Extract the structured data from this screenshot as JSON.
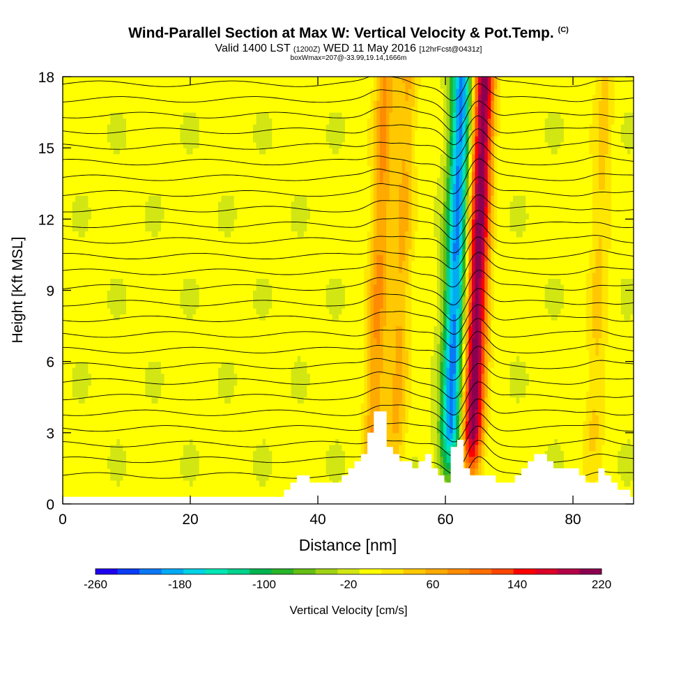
{
  "chart_data": {
    "type": "heatmap",
    "title": "Wind-Parallel Section at Max W: Vertical Velocity & Pot.Temp.",
    "title_mark": "(C)",
    "subtitle_main": "Valid 1400 LST",
    "subtitle_utc": "(1200Z)",
    "subtitle_date": "WED 11 May 2016",
    "subtitle_fcst": "[12hrFcst@0431z]",
    "subtitle2": "boxWmax=207@-33.99,19.14,1666m",
    "xlabel": "Distance [nm]",
    "ylabel": "Height [Kft MSL]",
    "xlim": [
      0,
      89.5
    ],
    "ylim": [
      0,
      18
    ],
    "x_ticks": [
      "0",
      "20",
      "40",
      "60",
      "80"
    ],
    "y_ticks": [
      "0",
      "3",
      "6",
      "9",
      "12",
      "15",
      "18"
    ],
    "colorbar_label": "Vertical Velocity [cm/s]",
    "colorbar_ticks": [
      "-260",
      "-180",
      "-100",
      "-20",
      "60",
      "140",
      "220"
    ],
    "colorbar_range": [
      -260,
      220
    ],
    "colorbar_colors": [
      "#1e00f0",
      "#0a3cf5",
      "#0a78f5",
      "#00aaf5",
      "#00d2e6",
      "#00e6b4",
      "#00d28c",
      "#00b450",
      "#28b428",
      "#64be14",
      "#a0d214",
      "#d2e614",
      "#ffff00",
      "#ffe600",
      "#ffc800",
      "#ffaa00",
      "#ff8c00",
      "#ff6e00",
      "#ff4600",
      "#ff0000",
      "#dc0028",
      "#b40046",
      "#8c0050"
    ],
    "terrain_heights_kft": [
      0.3,
      0.3,
      0.3,
      0.3,
      0.3,
      0.3,
      0.3,
      0.3,
      0.3,
      0.3,
      0.3,
      0.3,
      0.3,
      0.3,
      0.3,
      0.3,
      0.3,
      0.3,
      0.3,
      0.3,
      0.3,
      0.3,
      0.3,
      0.3,
      0.3,
      0.3,
      0.3,
      0.3,
      0.3,
      0.3,
      0.3,
      0.3,
      0.3,
      0.3,
      0.3,
      0.6,
      0.9,
      1.2,
      1.2,
      0.9,
      0.9,
      0.9,
      0.9,
      0.9,
      1.2,
      1.5,
      1.8,
      2.1,
      3.0,
      3.9,
      3.9,
      2.4,
      2.1,
      1.8,
      1.8,
      1.5,
      1.8,
      2.1,
      1.5,
      1.2,
      0.9,
      2.4,
      2.7,
      1.5,
      1.2,
      1.2,
      1.2,
      1.2,
      0.9,
      0.9,
      0.9,
      1.2,
      1.5,
      1.8,
      2.1,
      2.1,
      1.8,
      1.5,
      1.5,
      1.5,
      1.5,
      1.2,
      0.9,
      0.9,
      1.5,
      1.2,
      0.9,
      0.6,
      0.6,
      0.3
    ],
    "updraft_cores": [
      {
        "x": 65.0,
        "w_max": 220
      },
      {
        "x": 61.5,
        "w_max": -200
      },
      {
        "x": 49.5,
        "w_max": 80
      },
      {
        "x": 53.0,
        "w_max": 60
      },
      {
        "x": 84.0,
        "w_max": 40
      }
    ],
    "theta_contours": "potential temperature isentropes (black lines)"
  }
}
